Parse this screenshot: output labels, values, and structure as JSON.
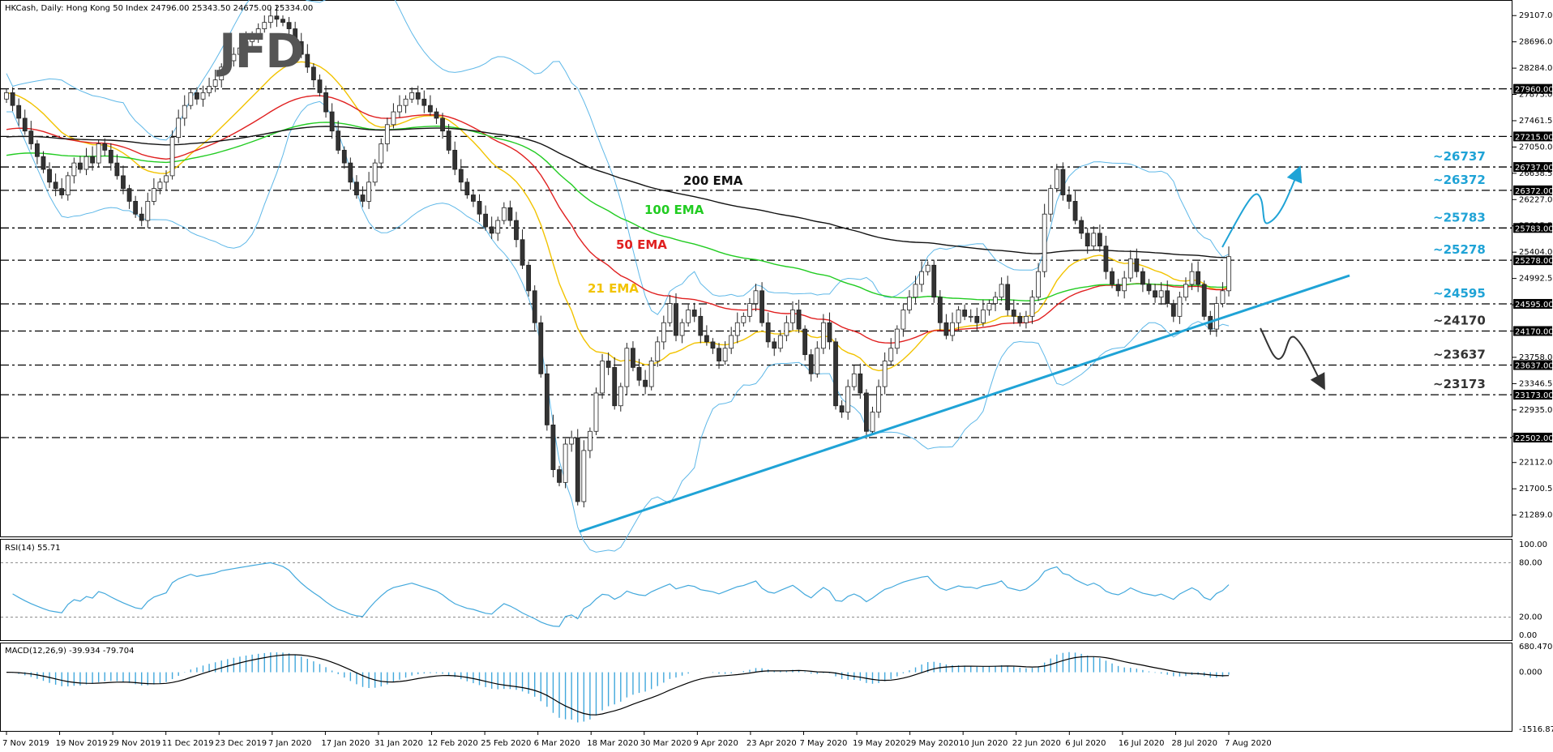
{
  "header": {
    "text": "HKCash, Daily: Hong Kong 50 Index  24796.00 25343.50 24675.00 25334.00"
  },
  "logo": {
    "text": "JFD"
  },
  "colors": {
    "bull": "#ffffff",
    "bear": "#333333",
    "wick": "#222222",
    "ema21": "#f2c300",
    "ema50": "#e02020",
    "ema100": "#22cc22",
    "ema200": "#111111",
    "bands": "#5fb8e8",
    "trendline": "#1fa3d6",
    "level": "#000000",
    "upLabel": "#1fa3d6",
    "downLabel": "#333333",
    "rsi": "#42a8dc",
    "macdHist": "#42a8dc",
    "macdSignal": "#000000"
  },
  "chart_data": [
    {
      "type": "line",
      "title": "HKCash, Daily: Hong Kong 50 Index  24796.00 25343.50 24675.00 25334.00",
      "ohlc_note": "24796.00 25343.50 24675.00 25334.00",
      "x_labels": [
        "7 Nov 2019",
        "19 Nov 2019",
        "29 Nov 2019",
        "11 Dec 2019",
        "23 Dec 2019",
        "7 Jan 2020",
        "17 Jan 2020",
        "31 Jan 2020",
        "12 Feb 2020",
        "25 Feb 2020",
        "6 Mar 2020",
        "18 Mar 2020",
        "30 Mar 2020",
        "9 Apr 2020",
        "23 Apr 2020",
        "7 May 2020",
        "19 May 2020",
        "29 May 2020",
        "10 Jun 2020",
        "22 Jun 2020",
        "6 Jul 2020",
        "16 Jul 2020",
        "28 Jul 2020",
        "7 Aug 2020"
      ],
      "y_ticks": [
        "29107.00",
        "28696.00",
        "28284.00",
        "27873.00",
        "27461.50",
        "27050.00",
        "26638.50",
        "26227.00",
        "25815.50",
        "25404.00",
        "24992.50",
        "24581.00",
        "24169.50",
        "23758.00",
        "23346.50",
        "22935.00",
        "22523.50",
        "22112.00",
        "21700.50",
        "21289.00"
      ],
      "ylim": [
        20980,
        29300
      ],
      "levels": [
        {
          "value": 27960,
          "label": "27960.00",
          "annotation": ""
        },
        {
          "value": 27215,
          "label": "27215.00",
          "annotation": ""
        },
        {
          "value": 26737,
          "label": "26737.00",
          "annotation": "~26737"
        },
        {
          "value": 26372,
          "label": "26372.00",
          "annotation": "~26372"
        },
        {
          "value": 25783,
          "label": "25783.00",
          "annotation": "~25783"
        },
        {
          "value": 25278,
          "label": "25278.00",
          "annotation": "~25278"
        },
        {
          "value": 24595,
          "label": "24595.00",
          "annotation": "~24595"
        },
        {
          "value": 24170,
          "label": "24170.00",
          "annotation": "~24170"
        },
        {
          "value": 23637,
          "label": "23637.00",
          "annotation": "~23637"
        },
        {
          "value": 23173,
          "label": "23173.00",
          "annotation": "~23173"
        },
        {
          "value": 22502,
          "label": "22502.00",
          "annotation": ""
        }
      ],
      "ema_labels": [
        "200 EMA",
        "100 EMA",
        "50 EMA",
        "21 EMA"
      ],
      "closes": [
        27900,
        27700,
        27500,
        27300,
        27100,
        26900,
        26700,
        26500,
        26400,
        26300,
        26600,
        26800,
        26700,
        26900,
        26800,
        27100,
        27000,
        26800,
        26600,
        26400,
        26200,
        26000,
        25900,
        26200,
        26400,
        26500,
        26600,
        27200,
        27500,
        27700,
        27900,
        27800,
        27900,
        28000,
        28100,
        28300,
        28400,
        28500,
        28600,
        28700,
        28800,
        28900,
        29000,
        29100,
        29050,
        29000,
        28900,
        28700,
        28500,
        28300,
        28100,
        27900,
        27600,
        27300,
        27000,
        26800,
        26500,
        26300,
        26200,
        26500,
        26800,
        27100,
        27400,
        27600,
        27700,
        27800,
        27900,
        27800,
        27700,
        27600,
        27500,
        27300,
        27000,
        26700,
        26500,
        26300,
        26200,
        26000,
        25800,
        25700,
        25900,
        26100,
        25900,
        25600,
        25200,
        24800,
        24300,
        23500,
        22700,
        22000,
        21800,
        22400,
        22500,
        21500,
        22300,
        22600,
        23200,
        23700,
        23600,
        23000,
        23300,
        23900,
        23600,
        23400,
        23300,
        23700,
        24000,
        24300,
        24600,
        24100,
        24300,
        24500,
        24400,
        24100,
        24000,
        23900,
        23700,
        23900,
        24100,
        24300,
        24400,
        24600,
        24800,
        24300,
        24000,
        23900,
        24100,
        24300,
        24500,
        24200,
        23800,
        23500,
        23900,
        24300,
        24000,
        23000,
        22900,
        23300,
        23500,
        23200,
        22600,
        22900,
        23300,
        23700,
        23900,
        24200,
        24500,
        24700,
        24900,
        25100,
        25200,
        24700,
        24300,
        24100,
        24300,
        24500,
        24400,
        24400,
        24300,
        24500,
        24600,
        24700,
        24900,
        24500,
        24400,
        24300,
        24400,
        24700,
        25100,
        26000,
        26400,
        26700,
        26300,
        26200,
        25900,
        25700,
        25500,
        25700,
        25500,
        25100,
        24900,
        24800,
        25000,
        25300,
        25100,
        24900,
        24800,
        24700,
        24800,
        24600,
        24400,
        24700,
        24900,
        25100,
        24900,
        24400,
        24200,
        24600,
        24800,
        25334
      ],
      "series": [
        {
          "name": "21 EMA"
        },
        {
          "name": "50 EMA"
        },
        {
          "name": "100 EMA"
        },
        {
          "name": "200 EMA"
        }
      ],
      "scenarios": {
        "up_target": 26737,
        "down_target": 23173
      }
    },
    {
      "type": "line",
      "title": "RSI(14) 55.71",
      "value": 55.71,
      "y_ticks": [
        "100.00",
        "80.00",
        "20.00",
        "0.00"
      ],
      "ylim": [
        0,
        100
      ],
      "levels": [
        80,
        20
      ]
    },
    {
      "type": "bar",
      "title": "MACD(12,26,9) -39.934 -79.704",
      "macd": -39.934,
      "signal": -79.704,
      "y_ticks": [
        "680.470",
        "0.000",
        "-1516.873"
      ],
      "ylim": [
        -1516.873,
        680.47
      ]
    }
  ]
}
